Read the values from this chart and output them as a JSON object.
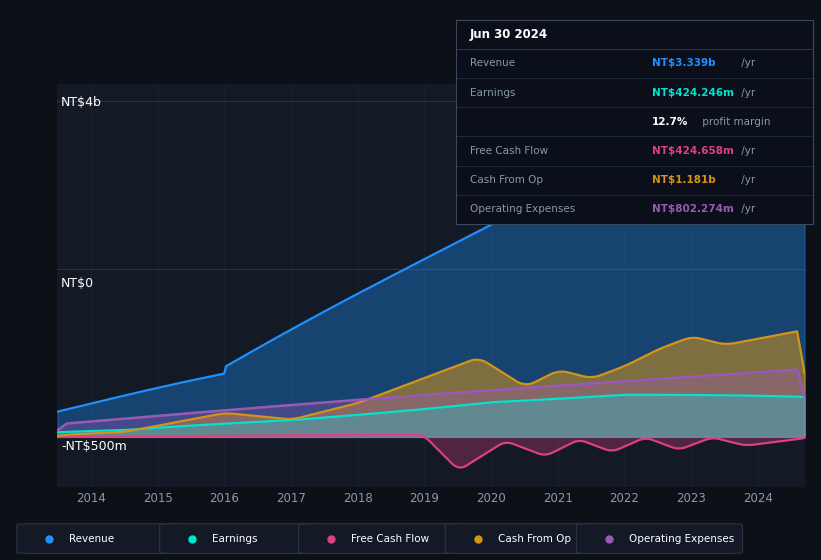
{
  "bg_color": "#0d1117",
  "plot_bg_color": "#131a25",
  "y_label_top": "NT$4b",
  "y_label_zero": "NT$0",
  "y_label_bottom": "-NT$500m",
  "ylim": [
    -600000000,
    4200000000
  ],
  "xlim_start": 2013.5,
  "xlim_end": 2024.7,
  "colors": {
    "revenue": "#1e90ff",
    "earnings": "#00e5cc",
    "free_cash_flow": "#e0407f",
    "cash_from_op": "#d4941a",
    "operating_expenses": "#9b59b6"
  },
  "legend_items": [
    "Revenue",
    "Earnings",
    "Free Cash Flow",
    "Cash From Op",
    "Operating Expenses"
  ],
  "grid_color": "#2a3545",
  "zero_line_color": "#3a4a5a",
  "tooltip": {
    "date": "Jun 30 2024",
    "revenue": "NT$3.339b /yr",
    "earnings": "NT$424.246m /yr",
    "profit_margin": "12.7% profit margin",
    "free_cash_flow": "NT$424.658m /yr",
    "cash_from_op": "NT$1.181b /yr",
    "operating_expenses": "NT$802.274m /yr"
  }
}
